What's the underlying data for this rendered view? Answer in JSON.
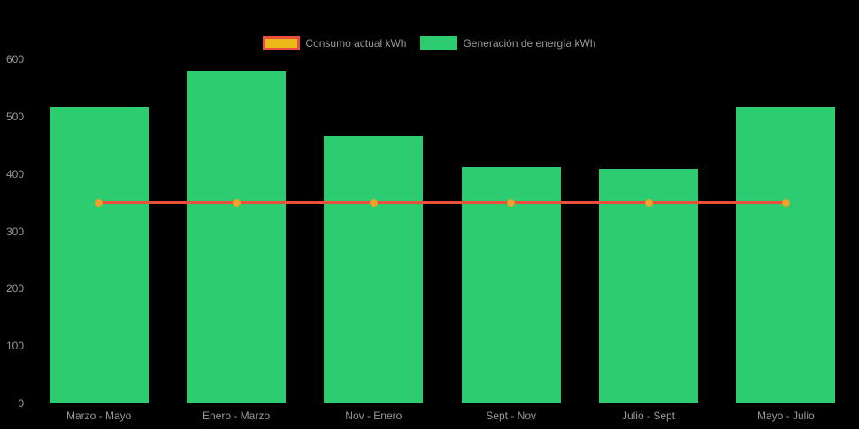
{
  "colors": {
    "background": "#000000",
    "bar_green": "#2ecc71",
    "line_red": "#e94f3b",
    "point_orange": "#f0a32a",
    "legend_consumo_fill": "#eab818",
    "legend_consumo_border": "#e94f3b",
    "axis_text_gray": "#999999"
  },
  "chart_data": {
    "type": "bar",
    "title": "",
    "xlabel": "",
    "ylabel": "",
    "categories": [
      "Marzo - Mayo",
      "Enero - Marzo",
      "Nov - Enero",
      "Sept - Nov",
      "Julio - Sept",
      "Mayo - Julio"
    ],
    "series": [
      {
        "name": "Consumo actual kWh",
        "type": "line",
        "color": "#e94f3b",
        "point_color": "#f0a32a",
        "values": [
          350,
          350,
          350,
          350,
          350,
          350
        ]
      },
      {
        "name": "Generación de energía kWh",
        "type": "bar",
        "color": "#2ecc71",
        "values": [
          517,
          580,
          466,
          412,
          409,
          516
        ]
      }
    ],
    "ylim": [
      0,
      600
    ],
    "yticks": [
      0,
      100,
      200,
      300,
      400,
      500,
      600
    ],
    "legend_position": "top",
    "grid": false
  }
}
